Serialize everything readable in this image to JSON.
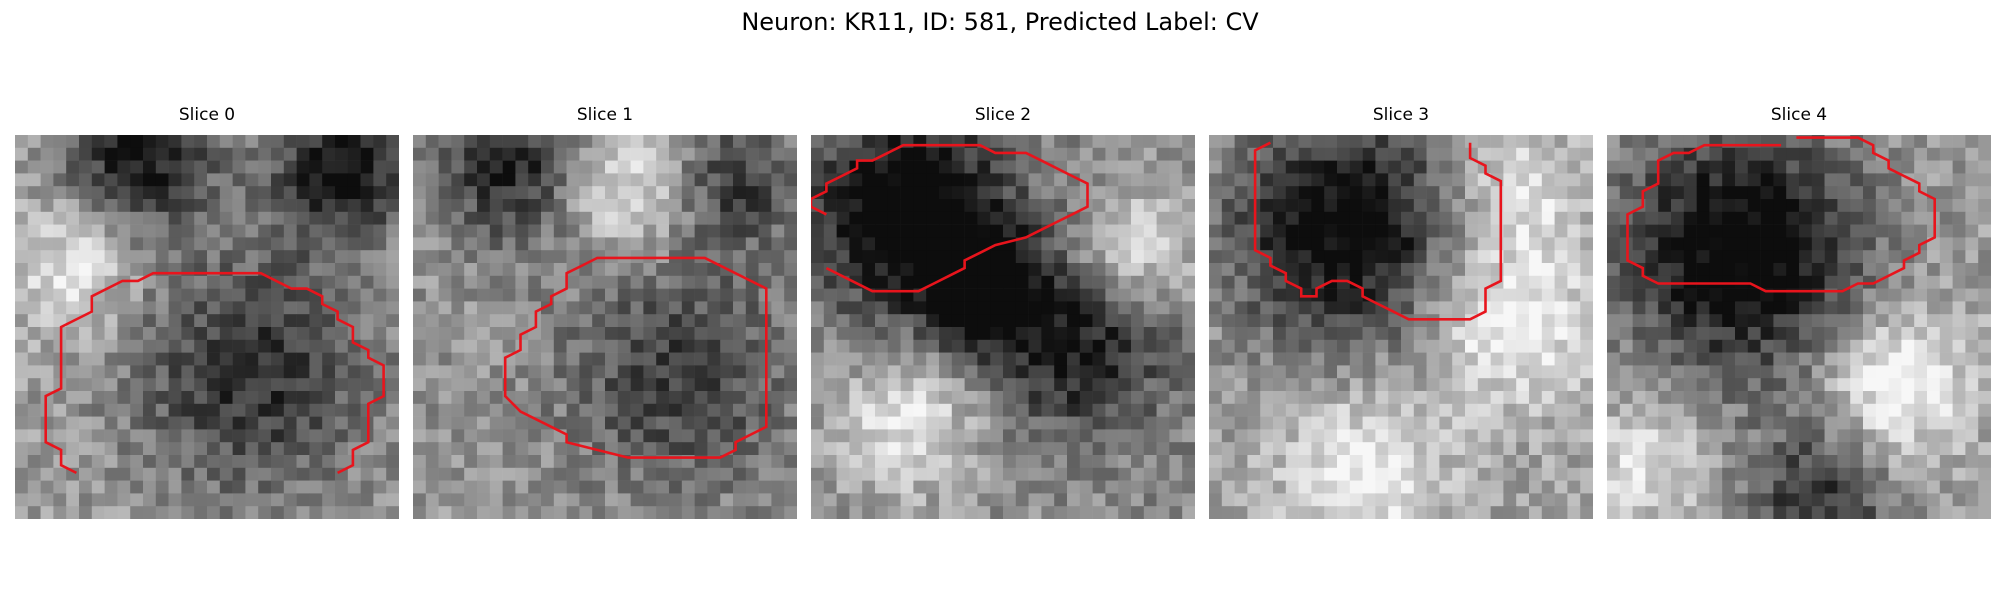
{
  "figure": {
    "title": "Neuron: KR11, ID: 581, Predicted Label: CV"
  },
  "panels": [
    {
      "title": "Slice 0",
      "image": "grayscale microscopy slice",
      "roi_outline": [
        [
          2.4,
          26.4
        ],
        [
          1.8,
          25.8
        ],
        [
          1.8,
          24.6
        ],
        [
          1.2,
          24.0
        ],
        [
          1.2,
          20.4
        ],
        [
          1.8,
          19.8
        ],
        [
          1.8,
          15.0
        ],
        [
          3.0,
          13.8
        ],
        [
          3.0,
          12.6
        ],
        [
          4.2,
          11.4
        ],
        [
          4.8,
          11.4
        ],
        [
          5.4,
          10.8
        ],
        [
          9.6,
          10.8
        ],
        [
          10.8,
          12.0
        ],
        [
          11.4,
          12.0
        ],
        [
          12.0,
          12.6
        ],
        [
          12.0,
          13.2
        ],
        [
          12.6,
          13.8
        ],
        [
          12.6,
          14.4
        ],
        [
          13.2,
          15.0
        ],
        [
          13.2,
          16.2
        ],
        [
          13.8,
          16.8
        ],
        [
          13.8,
          17.4
        ],
        [
          14.4,
          18.0
        ],
        [
          14.4,
          20.4
        ],
        [
          13.8,
          21.0
        ],
        [
          13.8,
          24.0
        ],
        [
          13.2,
          24.6
        ],
        [
          13.2,
          25.8
        ],
        [
          12.6,
          26.4
        ]
      ]
    },
    {
      "title": "Slice 1",
      "image": "grayscale microscopy slice",
      "roi_outline": [
        [
          13.2,
          23.4
        ],
        [
          13.8,
          22.8
        ],
        [
          13.8,
          12.0
        ],
        [
          11.4,
          9.6
        ],
        [
          7.2,
          9.6
        ],
        [
          6.6,
          10.2
        ],
        [
          6.0,
          10.8
        ],
        [
          6.0,
          12.0
        ],
        [
          5.4,
          12.6
        ],
        [
          5.4,
          13.2
        ],
        [
          4.8,
          13.8
        ],
        [
          4.8,
          15.0
        ],
        [
          4.2,
          15.6
        ],
        [
          4.2,
          16.8
        ],
        [
          3.6,
          17.4
        ],
        [
          3.6,
          20.4
        ],
        [
          4.2,
          21.6
        ],
        [
          5.4,
          22.8
        ],
        [
          6.0,
          23.4
        ],
        [
          6.0,
          24.0
        ],
        [
          8.4,
          25.2
        ],
        [
          12.0,
          25.2
        ],
        [
          12.6,
          24.6
        ],
        [
          12.6,
          24.0
        ],
        [
          13.2,
          23.4
        ]
      ]
    },
    {
      "title": "Slice 2",
      "image": "grayscale microscopy slice",
      "roi_outline": [
        [
          0.6,
          9.6
        ],
        [
          1.2,
          10.2
        ],
        [
          2.4,
          11.4
        ],
        [
          4.2,
          11.4
        ],
        [
          4.8,
          10.8
        ],
        [
          5.4,
          10.2
        ],
        [
          6.0,
          9.6
        ],
        [
          6.0,
          9.0
        ],
        [
          6.6,
          8.4
        ],
        [
          7.2,
          7.8
        ],
        [
          8.4,
          7.2
        ],
        [
          9.0,
          6.6
        ],
        [
          9.6,
          6.0
        ],
        [
          10.2,
          5.4
        ],
        [
          10.8,
          4.8
        ],
        [
          10.8,
          3.0
        ],
        [
          10.2,
          2.4
        ],
        [
          9.6,
          1.8
        ],
        [
          9.0,
          1.2
        ],
        [
          8.4,
          0.6
        ],
        [
          7.2,
          0.6
        ],
        [
          6.6,
          0.0
        ],
        [
          3.6,
          0.0
        ],
        [
          3.0,
          0.6
        ],
        [
          2.4,
          1.2
        ],
        [
          1.8,
          1.2
        ],
        [
          1.8,
          1.8
        ],
        [
          1.2,
          2.4
        ],
        [
          0.6,
          3.0
        ],
        [
          0.6,
          3.6
        ],
        [
          0.0,
          4.2
        ],
        [
          0.0,
          4.8
        ],
        [
          0.6,
          5.4
        ]
      ]
    },
    {
      "title": "Slice 3",
      "image": "grayscale microscopy slice",
      "roi_outline": [
        [
          2.4,
          0.6
        ],
        [
          1.8,
          1.2
        ],
        [
          1.8,
          1.8
        ],
        [
          1.8,
          9.0
        ],
        [
          2.4,
          9.6
        ],
        [
          2.4,
          10.2
        ],
        [
          3.0,
          10.8
        ],
        [
          3.0,
          11.4
        ],
        [
          3.6,
          12.0
        ],
        [
          3.6,
          12.6
        ],
        [
          4.2,
          12.6
        ],
        [
          4.2,
          12.0
        ],
        [
          4.8,
          11.4
        ],
        [
          5.4,
          11.4
        ],
        [
          6.0,
          12.0
        ],
        [
          6.0,
          12.6
        ],
        [
          6.6,
          13.2
        ],
        [
          7.2,
          13.8
        ],
        [
          7.8,
          14.4
        ],
        [
          10.2,
          14.4
        ],
        [
          10.8,
          13.8
        ],
        [
          10.8,
          12.0
        ],
        [
          11.4,
          11.4
        ],
        [
          11.4,
          7.2
        ],
        [
          11.4,
          6.0
        ],
        [
          11.4,
          3.6
        ],
        [
          10.8,
          3.0
        ],
        [
          10.8,
          2.4
        ],
        [
          10.2,
          1.8
        ],
        [
          10.2,
          0.6
        ]
      ]
    },
    {
      "title": "Slice 4",
      "image": "grayscale microscopy slice",
      "roi_outline": [
        [
          6.0,
          0.6
        ],
        [
          3.0,
          0.6
        ],
        [
          2.4,
          1.2
        ],
        [
          1.8,
          1.2
        ],
        [
          1.2,
          1.8
        ],
        [
          1.2,
          3.6
        ],
        [
          0.6,
          4.2
        ],
        [
          0.6,
          5.4
        ],
        [
          0.0,
          6.0
        ],
        [
          0.0,
          9.6
        ],
        [
          0.6,
          10.2
        ],
        [
          0.6,
          10.8
        ],
        [
          1.2,
          11.4
        ],
        [
          4.8,
          11.4
        ],
        [
          5.4,
          12.0
        ],
        [
          8.4,
          12.0
        ],
        [
          9.0,
          11.4
        ],
        [
          9.6,
          11.4
        ],
        [
          10.8,
          10.2
        ],
        [
          10.8,
          9.6
        ],
        [
          11.4,
          9.0
        ],
        [
          11.4,
          8.4
        ],
        [
          12.0,
          7.8
        ],
        [
          12.0,
          6.6
        ],
        [
          12.0,
          4.8
        ],
        [
          11.4,
          4.2
        ],
        [
          11.4,
          3.6
        ],
        [
          10.8,
          3.0
        ],
        [
          10.2,
          2.4
        ],
        [
          10.2,
          1.8
        ],
        [
          9.6,
          1.2
        ],
        [
          9.6,
          0.6
        ],
        [
          9.0,
          0.0
        ],
        [
          6.6,
          0.0
        ]
      ]
    }
  ],
  "styles": {
    "outline_color": "#e8141c"
  }
}
